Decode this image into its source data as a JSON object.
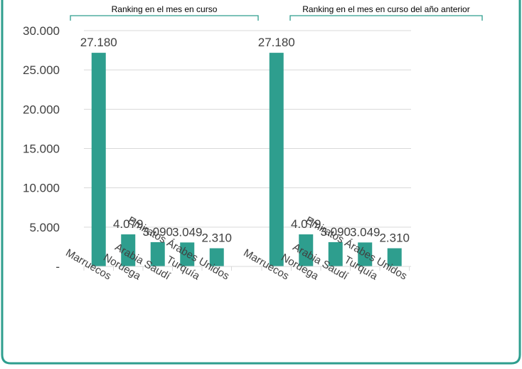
{
  "chart_data": {
    "type": "bar",
    "colors": {
      "bar": "#2E9E8E",
      "frame": "#2E9E8E",
      "bracket": "#2E9E8E",
      "grid": "#D9D9D9",
      "text": "#404040"
    },
    "ylim": [
      0,
      30000
    ],
    "y_ticks": [
      {
        "value": 0,
        "label": "-"
      },
      {
        "value": 5000,
        "label": "5.000"
      },
      {
        "value": 10000,
        "label": "10.000"
      },
      {
        "value": 15000,
        "label": "15.000"
      },
      {
        "value": 20000,
        "label": "20.000"
      },
      {
        "value": 25000,
        "label": "25.000"
      },
      {
        "value": 30000,
        "label": "30.000"
      }
    ],
    "grid": true,
    "groups": [
      {
        "label": "Ranking en el mes en curso",
        "categories": [
          "Marruecos",
          "Noruega",
          "Arabia Saudí",
          "Turquía",
          "Emiratos Árabes Unidos"
        ],
        "values": [
          27180,
          4079,
          3090,
          3049,
          2310
        ],
        "value_labels": [
          "27.180",
          "4.079",
          "3.090",
          "3.049",
          "2.310"
        ]
      },
      {
        "label": "Ranking en el mes en curso del año anterior",
        "categories": [
          "Marruecos",
          "Noruega",
          "Arabia Saudí",
          "Turquía",
          "Emiratos Árabes Unidos"
        ],
        "values": [
          27180,
          4079,
          3090,
          3049,
          2310
        ],
        "value_labels": [
          "27.180",
          "4.079",
          "3.090",
          "3.049",
          "2.310"
        ]
      }
    ]
  }
}
